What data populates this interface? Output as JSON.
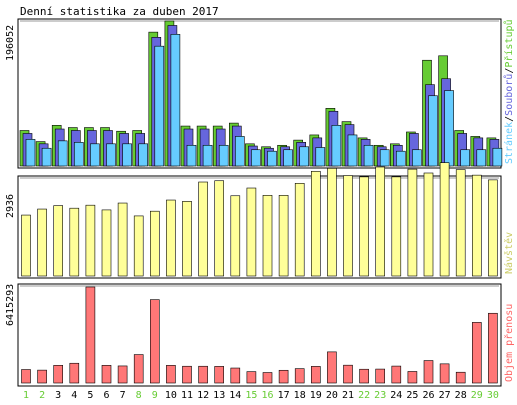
{
  "colors": {
    "hits": "#66CC33",
    "files": "#6666DD",
    "pages": "#66CCFF",
    "visits": "#FFFF99",
    "kbytes": "#FF7777",
    "weekend_day": "#66CC33",
    "weekday_day": "#000000",
    "label_hits": "#66CC33",
    "label_files": "#6666DD",
    "label_pages": "#66CCFF",
    "label_slash": "#000000",
    "label_visits": "#CCCC66",
    "label_kbytes": "#FF6666"
  },
  "chart_data": {
    "type": "bar",
    "title": "Denní statistika za duben 2017",
    "days": [
      "1",
      "2",
      "3",
      "4",
      "5",
      "6",
      "7",
      "8",
      "9",
      "10",
      "11",
      "12",
      "13",
      "14",
      "15",
      "16",
      "17",
      "18",
      "19",
      "20",
      "21",
      "22",
      "23",
      "24",
      "25",
      "26",
      "27",
      "28",
      "29",
      "30"
    ],
    "weekend_days": [
      "1",
      "2",
      "8",
      "9",
      "15",
      "16",
      "22",
      "23",
      "29",
      "30"
    ],
    "panels": [
      {
        "id": "top",
        "ymax_label": "196052",
        "ylim": [
          0,
          196052
        ],
        "legend": [
          {
            "name": "Přístupů",
            "color": "#66CC33"
          },
          {
            "name": "Souborů",
            "color": "#6666DD"
          },
          {
            "name": "Stránek",
            "color": "#66CCFF"
          }
        ],
        "series": [
          {
            "name": "Přístupů",
            "values": [
              48000,
              33000,
              55000,
              52000,
              52000,
              52000,
              47000,
              48000,
              181000,
              196052,
              54000,
              54000,
              54000,
              58000,
              30000,
              26000,
              28000,
              35000,
              42000,
              78000,
              60000,
              38000,
              28000,
              30000,
              46000,
              143000,
              149000,
              48000,
              40000,
              38000
            ]
          },
          {
            "name": "Souborů",
            "values": [
              44000,
              30000,
              50000,
              48000,
              48000,
              48000,
              44000,
              44000,
              174000,
              190000,
              50000,
              50000,
              50000,
              54000,
              27000,
              24000,
              26000,
              32000,
              38000,
              74000,
              56000,
              36000,
              26000,
              28000,
              44000,
              110000,
              118000,
              44000,
              38000,
              36000
            ]
          },
          {
            "name": "Stránek",
            "values": [
              36000,
              24000,
              34000,
              32000,
              30000,
              30000,
              30000,
              30000,
              162000,
              178000,
              28000,
              28000,
              28000,
              40000,
              22000,
              20000,
              22000,
              26000,
              25000,
              55000,
              42000,
              28000,
              22000,
              20000,
              22000,
              95000,
              102000,
              22000,
              22000,
              24000
            ]
          }
        ]
      },
      {
        "id": "middle",
        "ymax_label": "2936",
        "ylim": [
          0,
          2936
        ],
        "legend": [
          {
            "name": "Návštěv",
            "color": "#FFFF99"
          }
        ],
        "series": [
          {
            "name": "Návštěv",
            "values": [
              1420,
              1560,
              1640,
              1580,
              1650,
              1540,
              1700,
              1400,
              1510,
              1770,
              1740,
              2190,
              2220,
              1870,
              2050,
              1880,
              1880,
              2160,
              2440,
              2510,
              2340,
              2310,
              2540,
              2310,
              2490,
              2400,
              2640,
              2480,
              2350,
              2240
            ]
          }
        ]
      },
      {
        "id": "bottom",
        "ymax_label": "6415293",
        "ylim": [
          0,
          6415293
        ],
        "legend": [
          {
            "name": "Objem přenosu",
            "color": "#FF7777"
          }
        ],
        "series": [
          {
            "name": "Objem přenosu",
            "values": [
              900000,
              860000,
              1180000,
              1320000,
              6415293,
              1180000,
              1140000,
              1900000,
              5570000,
              1180000,
              1120000,
              1120000,
              1110000,
              1000000,
              760000,
              700000,
              850000,
              960000,
              1110000,
              2080000,
              1190000,
              920000,
              930000,
              1130000,
              770000,
              1500000,
              1280000,
              720000,
              4050000,
              4660000
            ]
          }
        ]
      }
    ]
  }
}
